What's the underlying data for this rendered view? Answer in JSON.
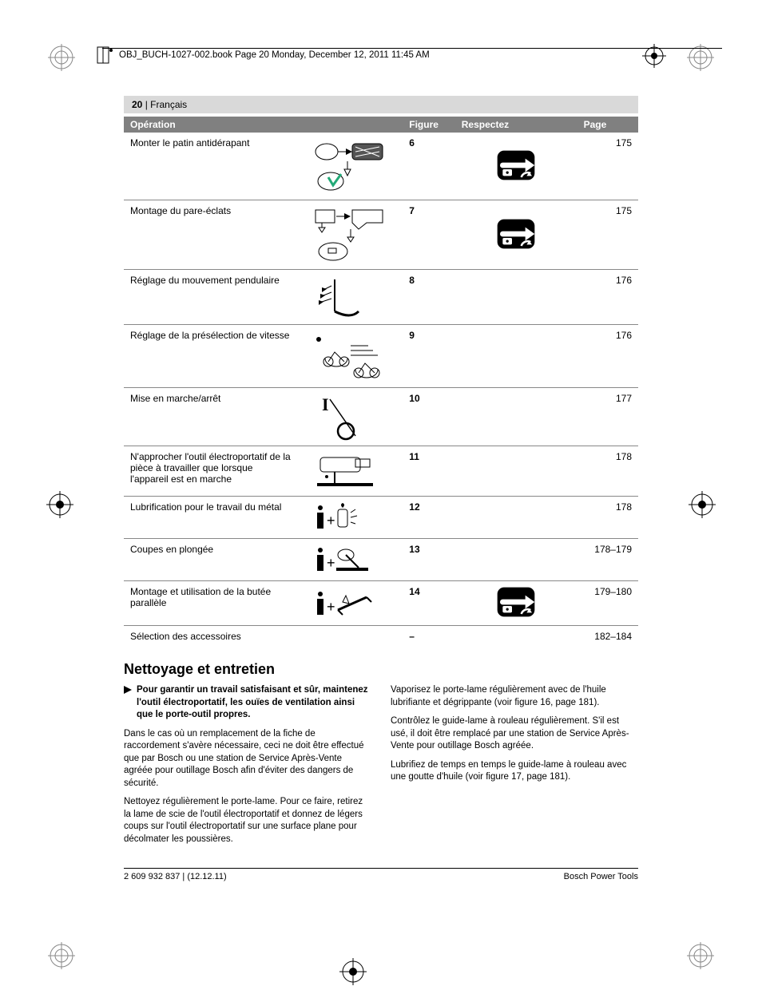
{
  "header": {
    "running": "OBJ_BUCH-1027-002.book  Page 20  Monday, December 12, 2011  11:45 AM",
    "page_label_num": "20",
    "page_label_lang": "Français"
  },
  "table": {
    "head": {
      "operation": "Opération",
      "figure": "Figure",
      "respect": "Respectez",
      "page": "Page"
    },
    "rows": [
      {
        "op": "Monter le patin antidérapant",
        "fig": "6",
        "page": "175",
        "respect": true
      },
      {
        "op": "Montage du pare-éclats",
        "fig": "7",
        "page": "175",
        "respect": true
      },
      {
        "op": "Réglage du mouvement pendulaire",
        "fig": "8",
        "page": "176",
        "respect": false
      },
      {
        "op": "Réglage de la présélection de vitesse",
        "fig": "9",
        "page": "176",
        "respect": false
      },
      {
        "op": "Mise en marche/arrêt",
        "fig": "10",
        "page": "177",
        "respect": false
      },
      {
        "op": "N'approcher l'outil électroportatif de la pièce à travailler que lorsque l'appareil est en marche",
        "fig": "11",
        "page": "178",
        "respect": false
      },
      {
        "op": "Lubrification pour le travail du métal",
        "fig": "12",
        "page": "178",
        "respect": false
      },
      {
        "op": "Coupes en plongée",
        "fig": "13",
        "page": "178–179",
        "respect": false
      },
      {
        "op": "Montage et utilisation de la butée parallèle",
        "fig": "14",
        "page": "179–180",
        "respect": true
      },
      {
        "op": "Sélection des accessoires",
        "fig": "–",
        "page": "182–184",
        "respect": false
      }
    ]
  },
  "section": {
    "title": "Nettoyage et entretien",
    "warn": "Pour garantir un travail satisfaisant et sûr, maintenez l'outil électroportatif, les ouïes de ventilation ainsi que le porte-outil propres.",
    "left": [
      "Dans le cas où un remplacement de la fiche de raccordement s'avère nécessaire, ceci ne doit être effectué que par Bosch ou une station de Service Après-Vente agréée pour outillage Bosch afin d'éviter des dangers de sécurité.",
      "Nettoyez régulièrement le porte-lame. Pour ce faire, retirez la lame de scie de l'outil électroportatif et donnez de légers coups sur l'outil électroportatif sur une surface plane pour décolmater les poussières."
    ],
    "right": [
      "Vaporisez le porte-lame régulièrement avec de l'huile lubrifiante et dégrippante (voir figure 16, page 181).",
      "Contrôlez le guide-lame à rouleau régulièrement. S'il est usé, il doit être remplacé par une station de Service Après-Vente pour outillage Bosch agréée.",
      "Lubrifiez de temps en temps le guide-lame à rouleau avec une goutte d'huile (voir figure 17, page 181)."
    ]
  },
  "footer": {
    "left": "2 609 932 837 | (12.12.11)",
    "right": "Bosch Power Tools"
  },
  "colors": {
    "header_grey": "#d9d9d9",
    "table_head": "#808080",
    "rule": "#888888"
  }
}
